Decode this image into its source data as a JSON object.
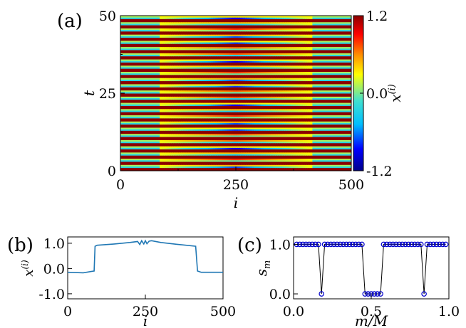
{
  "panels": {
    "a": {
      "label": "(a)"
    },
    "b": {
      "label": "(b)"
    },
    "c": {
      "label": "(c)"
    }
  },
  "colorbar": {
    "label": "x(i)",
    "ticks": [
      "1.2",
      "0.0",
      "-1.2"
    ],
    "range": [
      -1.2,
      1.2
    ],
    "colors": [
      "#00008b",
      "#0000ff",
      "#00bfff",
      "#40e0d0",
      "#ffff00",
      "#ff8c00",
      "#ff0000",
      "#8b0000"
    ]
  },
  "chart_data": [
    {
      "type": "heatmap",
      "panel": "(a)",
      "xlabel": "i",
      "ylabel": "t",
      "xlim": [
        0,
        500
      ],
      "ylim": [
        0,
        50
      ],
      "xticks": [
        "0",
        "250",
        "500"
      ],
      "yticks": [
        "0",
        "25",
        "50"
      ],
      "zlabel": "x(i)",
      "zlim": [
        -1.2,
        1.2
      ],
      "description_values": {
        "outer_regions_i": [
          [
            0,
            85
          ],
          [
            415,
            500
          ]
        ],
        "inner_region_i": [
          85,
          415
        ],
        "oscillation_period_t": 2,
        "outer_amplitude": 1.2,
        "inner_low_value_range": [
          -1.0,
          0.3
        ]
      }
    },
    {
      "type": "line",
      "panel": "(b)",
      "xlabel": "i",
      "ylabel": "x(i)",
      "xlim": [
        0,
        500
      ],
      "ylim": [
        -1.2,
        1.25
      ],
      "xticks": [
        "0",
        "250",
        "500"
      ],
      "yticks": [
        "1.0",
        "0.0",
        "-1.0"
      ],
      "color": "#1f77b4",
      "series": [
        {
          "x": [
            0,
            50,
            85,
            88,
            95,
            150,
            200,
            225,
            232,
            238,
            245,
            250,
            255,
            262,
            270,
            300,
            350,
            412,
            418,
            430,
            470,
            500
          ],
          "y": [
            -0.15,
            -0.17,
            -0.1,
            0.88,
            0.92,
            0.97,
            1.03,
            1.07,
            0.95,
            1.1,
            0.97,
            1.1,
            0.98,
            1.08,
            1.1,
            1.03,
            0.96,
            0.88,
            -0.1,
            -0.15,
            -0.15,
            -0.15
          ]
        }
      ]
    },
    {
      "type": "line",
      "panel": "(c)",
      "xlabel": "m/M",
      "ylabel": "s_m",
      "xlim": [
        0,
        1.0
      ],
      "ylim": [
        -0.1,
        1.15
      ],
      "xticks": [
        "0.0",
        "0.5",
        "1.0"
      ],
      "yticks": [
        "1.0",
        "0.0"
      ],
      "marker": "circle",
      "color": "#0000cc",
      "series": [
        {
          "x": [
            0.02,
            0.04,
            0.06,
            0.08,
            0.1,
            0.12,
            0.14,
            0.16,
            0.18,
            0.2,
            0.22,
            0.24,
            0.26,
            0.28,
            0.3,
            0.32,
            0.34,
            0.36,
            0.38,
            0.4,
            0.42,
            0.44,
            0.46,
            0.48,
            0.5,
            0.52,
            0.54,
            0.56,
            0.58,
            0.6,
            0.62,
            0.64,
            0.66,
            0.68,
            0.7,
            0.72,
            0.74,
            0.76,
            0.78,
            0.8,
            0.82,
            0.84,
            0.86,
            0.88,
            0.9,
            0.92,
            0.94,
            0.96,
            0.98
          ],
          "y": [
            1,
            1,
            1,
            1,
            1,
            1,
            1,
            1,
            0,
            1,
            1,
            1,
            1,
            1,
            1,
            1,
            1,
            1,
            1,
            1,
            1,
            1,
            0,
            0,
            0,
            0,
            0,
            0,
            1,
            1,
            1,
            1,
            1,
            1,
            1,
            1,
            1,
            1,
            1,
            1,
            1,
            0,
            1,
            1,
            1,
            1,
            1,
            1,
            1
          ]
        }
      ]
    }
  ]
}
